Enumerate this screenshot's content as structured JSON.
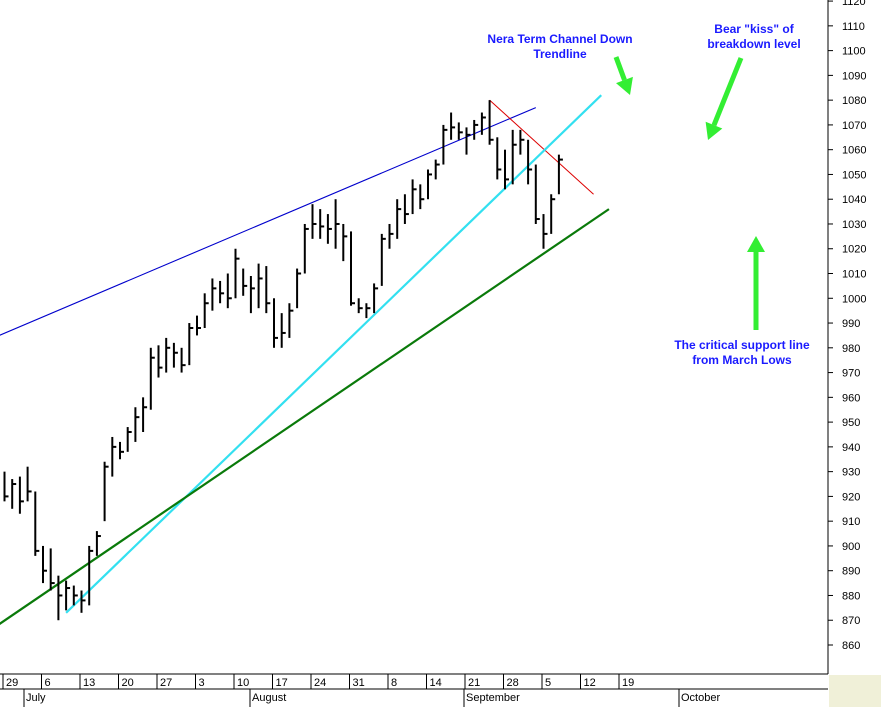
{
  "chart_data": {
    "type": "bar",
    "subtype": "ohlc",
    "title": "",
    "xlabel": "",
    "ylabel": "",
    "ylim": [
      848,
      1122
    ],
    "y_ticks": [
      860,
      870,
      880,
      890,
      900,
      910,
      920,
      930,
      940,
      950,
      960,
      970,
      980,
      990,
      1000,
      1010,
      1020,
      1030,
      1040,
      1050,
      1060,
      1070,
      1080,
      1090,
      1100,
      1110,
      1120
    ],
    "x_day_ticks": [
      "29",
      "6",
      "13",
      "20",
      "27",
      "3",
      "10",
      "17",
      "24",
      "31",
      "8",
      "14",
      "21",
      "28",
      "5",
      "12",
      "19"
    ],
    "x_month_labels": [
      "July",
      "August",
      "September",
      "October"
    ],
    "grid": false,
    "colors": {
      "background": "#ffffff",
      "bars": "#000000",
      "channel_trendline": "#0000cc",
      "downtrend_line": "#dd0000",
      "breakdown_line": "#33e0f0",
      "support_line": "#0a7a0a",
      "arrows": "#33ee33",
      "annotation_text": "#1a1aff",
      "axis_panel": "#ffffff",
      "corner_panel": "#f0f0d8"
    },
    "bars": [
      {
        "h": 930,
        "l": 918,
        "c": 920
      },
      {
        "h": 927,
        "l": 915,
        "c": 925
      },
      {
        "h": 928,
        "l": 913,
        "c": 918
      },
      {
        "h": 932,
        "l": 918,
        "c": 922
      },
      {
        "h": 922,
        "l": 896,
        "c": 898
      },
      {
        "h": 900,
        "l": 885,
        "c": 890
      },
      {
        "h": 899,
        "l": 882,
        "c": 885
      },
      {
        "h": 888,
        "l": 870,
        "c": 880
      },
      {
        "h": 886,
        "l": 874,
        "c": 883
      },
      {
        "h": 884,
        "l": 876,
        "c": 880
      },
      {
        "h": 882,
        "l": 873,
        "c": 878
      },
      {
        "h": 900,
        "l": 876,
        "c": 898
      },
      {
        "h": 906,
        "l": 896,
        "c": 904
      },
      {
        "h": 934,
        "l": 910,
        "c": 932
      },
      {
        "h": 944,
        "l": 928,
        "c": 940
      },
      {
        "h": 942,
        "l": 935,
        "c": 938
      },
      {
        "h": 948,
        "l": 938,
        "c": 946
      },
      {
        "h": 956,
        "l": 942,
        "c": 952
      },
      {
        "h": 960,
        "l": 946,
        "c": 956
      },
      {
        "h": 980,
        "l": 955,
        "c": 976
      },
      {
        "h": 981,
        "l": 968,
        "c": 972
      },
      {
        "h": 984,
        "l": 970,
        "c": 980
      },
      {
        "h": 982,
        "l": 972,
        "c": 978
      },
      {
        "h": 980,
        "l": 970,
        "c": 973
      },
      {
        "h": 990,
        "l": 973,
        "c": 988
      },
      {
        "h": 993,
        "l": 985,
        "c": 988
      },
      {
        "h": 1002,
        "l": 988,
        "c": 998
      },
      {
        "h": 1008,
        "l": 995,
        "c": 1004
      },
      {
        "h": 1007,
        "l": 998,
        "c": 1002
      },
      {
        "h": 1010,
        "l": 996,
        "c": 1000
      },
      {
        "h": 1020,
        "l": 1000,
        "c": 1016
      },
      {
        "h": 1012,
        "l": 1001,
        "c": 1005
      },
      {
        "h": 1009,
        "l": 994,
        "c": 1004
      },
      {
        "h": 1014,
        "l": 996,
        "c": 1008
      },
      {
        "h": 1013,
        "l": 994,
        "c": 998
      },
      {
        "h": 1000,
        "l": 980,
        "c": 984
      },
      {
        "h": 994,
        "l": 980,
        "c": 986
      },
      {
        "h": 998,
        "l": 984,
        "c": 995
      },
      {
        "h": 1012,
        "l": 996,
        "c": 1010
      },
      {
        "h": 1030,
        "l": 1010,
        "c": 1028
      },
      {
        "h": 1038,
        "l": 1024,
        "c": 1030
      },
      {
        "h": 1036,
        "l": 1024,
        "c": 1029
      },
      {
        "h": 1034,
        "l": 1022,
        "c": 1028
      },
      {
        "h": 1040,
        "l": 1020,
        "c": 1030
      },
      {
        "h": 1030,
        "l": 1015,
        "c": 1025
      },
      {
        "h": 1027,
        "l": 997,
        "c": 998
      },
      {
        "h": 1000,
        "l": 994,
        "c": 996
      },
      {
        "h": 998,
        "l": 992,
        "c": 996
      },
      {
        "h": 1006,
        "l": 994,
        "c": 1004
      },
      {
        "h": 1026,
        "l": 1005,
        "c": 1024
      },
      {
        "h": 1030,
        "l": 1020,
        "c": 1026
      },
      {
        "h": 1040,
        "l": 1024,
        "c": 1036
      },
      {
        "h": 1042,
        "l": 1030,
        "c": 1034
      },
      {
        "h": 1048,
        "l": 1034,
        "c": 1044
      },
      {
        "h": 1046,
        "l": 1036,
        "c": 1040
      },
      {
        "h": 1052,
        "l": 1040,
        "c": 1050
      },
      {
        "h": 1056,
        "l": 1048,
        "c": 1054
      },
      {
        "h": 1070,
        "l": 1054,
        "c": 1068
      },
      {
        "h": 1075,
        "l": 1064,
        "c": 1069
      },
      {
        "h": 1071,
        "l": 1064,
        "c": 1067
      },
      {
        "h": 1069,
        "l": 1058,
        "c": 1066
      },
      {
        "h": 1072,
        "l": 1064,
        "c": 1070
      },
      {
        "h": 1075,
        "l": 1066,
        "c": 1073
      },
      {
        "h": 1080,
        "l": 1062,
        "c": 1064
      },
      {
        "h": 1065,
        "l": 1048,
        "c": 1052
      },
      {
        "h": 1060,
        "l": 1044,
        "c": 1048
      },
      {
        "h": 1068,
        "l": 1046,
        "c": 1062
      },
      {
        "h": 1068,
        "l": 1058,
        "c": 1064
      },
      {
        "h": 1064,
        "l": 1046,
        "c": 1052
      },
      {
        "h": 1054,
        "l": 1030,
        "c": 1032
      },
      {
        "h": 1034,
        "l": 1020,
        "c": 1026
      },
      {
        "h": 1042,
        "l": 1026,
        "c": 1040
      },
      {
        "h": 1058,
        "l": 1042,
        "c": 1056
      }
    ],
    "trendlines": [
      {
        "name": "Nera Term Channel Down Trendline",
        "color_key": "channel_trendline",
        "from": {
          "bar": -7.5,
          "value": 976
        },
        "to": {
          "bar": 69,
          "value": 1077
        }
      },
      {
        "name": "downtrend",
        "color_key": "downtrend_line",
        "from": {
          "bar": 63,
          "value": 1080
        },
        "to": {
          "bar": 76.5,
          "value": 1042
        }
      },
      {
        "name": "breakdown",
        "color_key": "breakdown_line",
        "from": {
          "bar": 8,
          "value": 873
        },
        "to": {
          "bar": 77.5,
          "value": 1082
        }
      },
      {
        "name": "support",
        "color_key": "support_line",
        "from": {
          "bar": -7.5,
          "value": 854
        },
        "to": {
          "bar": 78.5,
          "value": 1036
        }
      }
    ],
    "annotations": [
      {
        "key": "channel",
        "lines": [
          "Nera Term Channel Down",
          "Trendline"
        ]
      },
      {
        "key": "kiss",
        "lines": [
          "Bear \"kiss\" of",
          "breakdown level"
        ]
      },
      {
        "key": "support",
        "lines": [
          "The critical support line",
          "from March Lows"
        ]
      }
    ]
  }
}
